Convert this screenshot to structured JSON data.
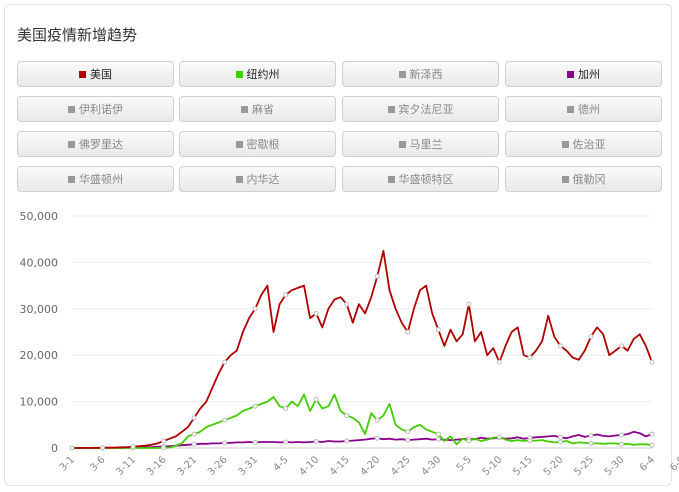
{
  "title": "美国疫情新增趋势",
  "buttons": [
    {
      "label": "美国",
      "color": "#b00000",
      "active": true
    },
    {
      "label": "纽约州",
      "color": "#44cc00",
      "active": true
    },
    {
      "label": "新泽西",
      "color": "#999999",
      "active": false
    },
    {
      "label": "加州",
      "color": "#8b008b",
      "active": true
    },
    {
      "label": "伊利诺伊",
      "color": "#999999",
      "active": false
    },
    {
      "label": "麻省",
      "color": "#999999",
      "active": false
    },
    {
      "label": "宾夕法尼亚",
      "color": "#999999",
      "active": false
    },
    {
      "label": "德州",
      "color": "#999999",
      "active": false
    },
    {
      "label": "佛罗里达",
      "color": "#999999",
      "active": false
    },
    {
      "label": "密歇根",
      "color": "#999999",
      "active": false
    },
    {
      "label": "马里兰",
      "color": "#999999",
      "active": false
    },
    {
      "label": "佐治亚",
      "color": "#999999",
      "active": false
    },
    {
      "label": "华盛顿州",
      "color": "#999999",
      "active": false
    },
    {
      "label": "内华达",
      "color": "#999999",
      "active": false
    },
    {
      "label": "华盛顿特区",
      "color": "#999999",
      "active": false
    },
    {
      "label": "俄勒冈",
      "color": "#999999",
      "active": false
    }
  ],
  "chart_data": {
    "type": "line",
    "ylim": [
      0,
      50000
    ],
    "y_ticks": [
      "0",
      "10,000",
      "20,000",
      "30,000",
      "40,000",
      "50,000"
    ],
    "x_ticks": [
      "3-1",
      "3-6",
      "3-11",
      "3-16",
      "3-21",
      "3-26",
      "3-31",
      "4-5",
      "4-10",
      "4-15",
      "4-20",
      "4-25",
      "4-30",
      "5-5",
      "5-10",
      "5-15",
      "5-20",
      "5-25",
      "5-30",
      "6-4",
      "6-9"
    ],
    "x_start": "3-1",
    "series": [
      {
        "name": "美国",
        "color": "#b00000",
        "values": [
          0,
          10,
          20,
          30,
          40,
          60,
          80,
          100,
          150,
          200,
          300,
          400,
          500,
          700,
          1000,
          1500,
          2000,
          2500,
          3500,
          4500,
          6500,
          8500,
          10000,
          13000,
          16000,
          18500,
          20000,
          21000,
          25000,
          28000,
          30000,
          33000,
          35000,
          25000,
          31000,
          33000,
          34000,
          34500,
          35000,
          28000,
          29000,
          26000,
          30000,
          32000,
          32500,
          31000,
          27000,
          31000,
          29000,
          32500,
          37000,
          42500,
          34000,
          30000,
          27000,
          25000,
          30000,
          34000,
          35000,
          29000,
          25500,
          22000,
          25500,
          23000,
          24500,
          31000,
          23000,
          25000,
          20000,
          21500,
          18500,
          22000,
          25000,
          26000,
          20000,
          19500,
          21000,
          23000,
          28500,
          24000,
          22000,
          21000,
          19500,
          19000,
          21000,
          24000,
          26000,
          24500,
          20000,
          21000,
          22000,
          21000,
          23500,
          24500,
          22000,
          18500
        ]
      },
      {
        "name": "纽约州",
        "color": "#44cc00",
        "values": [
          0,
          0,
          0,
          0,
          0,
          0,
          0,
          0,
          0,
          0,
          0,
          0,
          0,
          0,
          0,
          50,
          100,
          500,
          1000,
          2500,
          3000,
          3500,
          4500,
          5000,
          5500,
          6000,
          6500,
          7000,
          8000,
          8500,
          9000,
          9500,
          10000,
          11000,
          9000,
          8500,
          10000,
          9000,
          11500,
          8000,
          10500,
          8500,
          9000,
          11500,
          8000,
          7000,
          6500,
          5500,
          3000,
          7500,
          6000,
          7000,
          9500,
          5000,
          4000,
          3500,
          4500,
          5000,
          4000,
          3500,
          3000,
          1500,
          2500,
          800,
          2000,
          1500,
          2000,
          1500,
          1800,
          2200,
          2400,
          1800,
          1500,
          1700,
          1500,
          1600,
          1600,
          1700,
          1400,
          1200,
          1300,
          1500,
          1000,
          1200,
          1100,
          1000,
          1000,
          900,
          1000,
          1000,
          800,
          900,
          700,
          800,
          800,
          600
        ]
      },
      {
        "name": "加州",
        "color": "#8b008b",
        "values": [
          0,
          0,
          0,
          0,
          0,
          0,
          0,
          0,
          0,
          50,
          100,
          100,
          150,
          200,
          300,
          300,
          400,
          500,
          600,
          700,
          800,
          900,
          900,
          1000,
          1000,
          1100,
          1100,
          1200,
          1200,
          1300,
          1200,
          1300,
          1300,
          1300,
          1200,
          1300,
          1200,
          1300,
          1200,
          1300,
          1400,
          1300,
          1500,
          1400,
          1400,
          1500,
          1600,
          1700,
          1800,
          2000,
          2100,
          1900,
          2000,
          1800,
          1900,
          1700,
          1800,
          1900,
          2000,
          1800,
          1900,
          1800,
          1700,
          1800,
          1900,
          2000,
          1900,
          2200,
          2000,
          2100,
          2200,
          2000,
          2100,
          2300,
          2000,
          2200,
          2300,
          2400,
          2500,
          2600,
          2300,
          2100,
          2500,
          2800,
          2400,
          2700,
          2900,
          2600,
          2500,
          2700,
          2800,
          3000,
          3500,
          3200,
          2500,
          3000
        ]
      }
    ]
  }
}
